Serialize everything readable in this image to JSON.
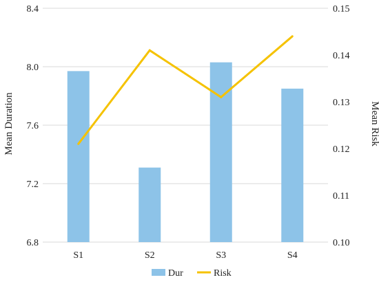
{
  "chart_data": {
    "type": "bar",
    "categories": [
      "S1",
      "S2",
      "S3",
      "S4"
    ],
    "series": [
      {
        "name": "Dur",
        "type": "bar",
        "axis": "left",
        "values": [
          7.97,
          7.31,
          8.03,
          7.85
        ]
      },
      {
        "name": "Risk",
        "type": "line",
        "axis": "right",
        "values": [
          0.121,
          0.141,
          0.131,
          0.144
        ]
      }
    ],
    "ylabel_left": "Mean Duration",
    "ylabel_right": "Mean Risk",
    "ylim_left": [
      6.8,
      8.4
    ],
    "yticks_left": [
      "6.8",
      "7.2",
      "7.6",
      "8.0",
      "8.4"
    ],
    "ylim_right": [
      0.1,
      0.15
    ],
    "yticks_right": [
      "0.10",
      "0.11",
      "0.12",
      "0.13",
      "0.14",
      "0.15"
    ],
    "grid": true,
    "legend": "bottom",
    "colors": {
      "bar": "#8DC3E8",
      "line": "#F5C200",
      "grid": "#D9D9D9"
    }
  }
}
